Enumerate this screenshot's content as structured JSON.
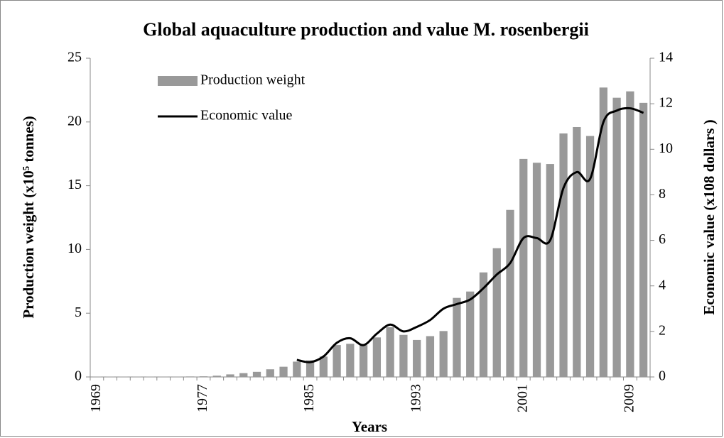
{
  "chart_data": {
    "type": "bar-line",
    "title": "Global aquaculture production and value M. rosenbergii",
    "x_label": "Years",
    "y_label": "Production weight (x10⁵ tonnes)",
    "y2_label": "Economic value (x108 dollars )",
    "categories": [
      "1969",
      null,
      null,
      null,
      null,
      null,
      null,
      null,
      "1977",
      null,
      null,
      null,
      null,
      null,
      null,
      null,
      "1985",
      null,
      null,
      null,
      null,
      null,
      null,
      null,
      "1993",
      null,
      null,
      null,
      null,
      null,
      null,
      null,
      "2001",
      null,
      null,
      null,
      null,
      null,
      null,
      null,
      "2009",
      null
    ],
    "series": [
      {
        "name": "Production weight",
        "color": "#999999",
        "values": [
          0.02,
          0.02,
          0.02,
          0.02,
          0.02,
          0.03,
          0.03,
          0.04,
          0.05,
          0.1,
          0.2,
          0.3,
          0.4,
          0.6,
          0.8,
          1.2,
          1.3,
          1.6,
          2.5,
          2.6,
          2.5,
          3.1,
          3.9,
          3.3,
          2.9,
          3.2,
          3.6,
          6.2,
          6.7,
          8.2,
          10.1,
          13.1,
          17.1,
          16.8,
          16.7,
          19.1,
          19.6,
          18.9,
          22.7,
          21.9,
          22.4,
          21.5
        ]
      },
      {
        "name": "Economic value",
        "color": "#000000",
        "axis": "y2",
        "values": [
          null,
          null,
          null,
          null,
          null,
          null,
          null,
          null,
          null,
          null,
          null,
          null,
          null,
          null,
          null,
          0.75,
          0.65,
          0.9,
          1.5,
          1.7,
          1.4,
          1.9,
          2.3,
          2.0,
          2.2,
          2.5,
          3.0,
          3.2,
          3.4,
          3.9,
          4.5,
          5.0,
          6.1,
          6.1,
          6.0,
          8.3,
          9.0,
          8.7,
          11.2,
          11.7,
          11.8,
          11.6
        ]
      }
    ],
    "ylim": [
      0,
      25
    ],
    "yticks": [
      0,
      5,
      10,
      15,
      20,
      25
    ],
    "y2lim": [
      0,
      14
    ],
    "y2ticks": [
      0,
      2,
      4,
      6,
      8,
      10,
      12,
      14
    ],
    "legend": "top-left"
  }
}
